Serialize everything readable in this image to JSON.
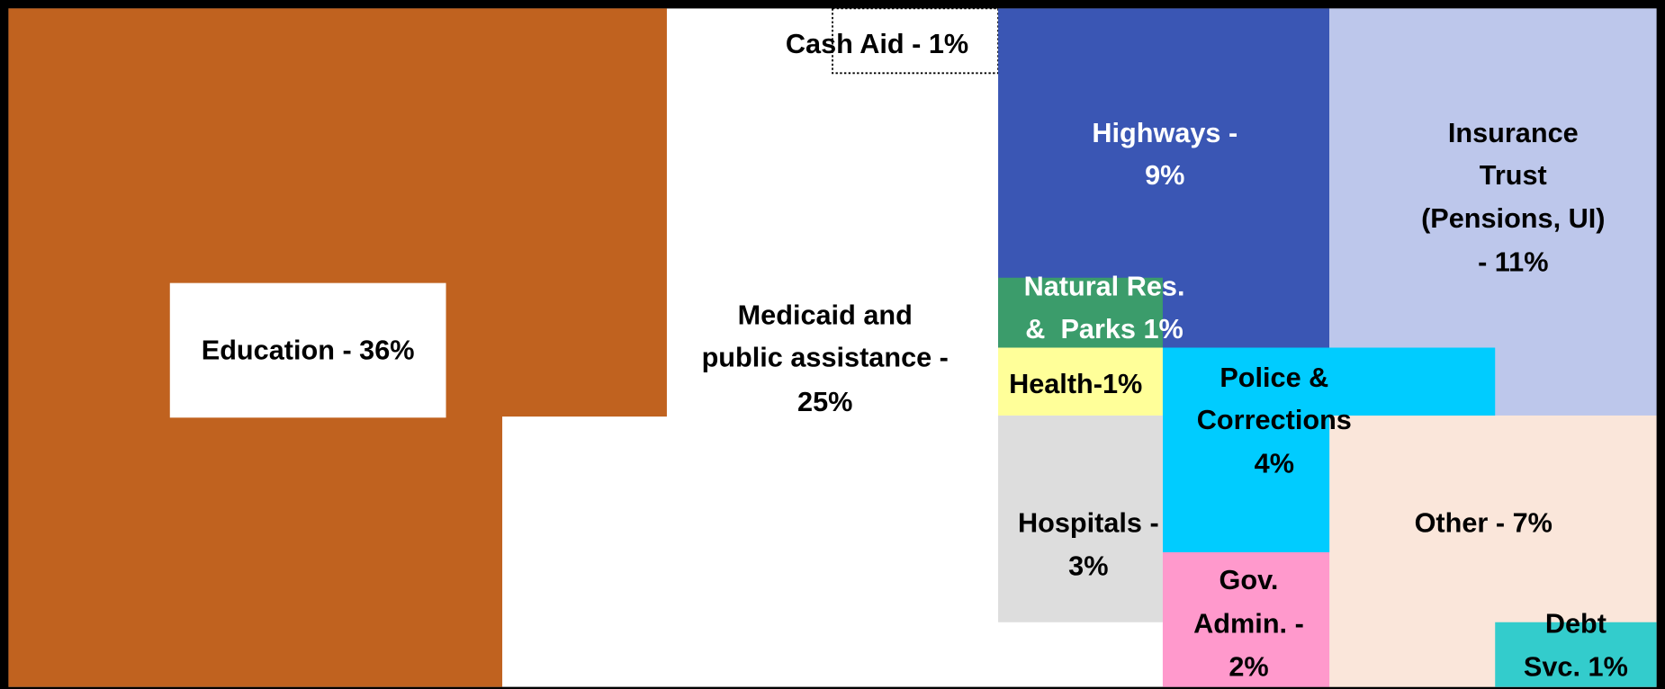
{
  "blocks": [
    {
      "name": "education",
      "lines": [
        "Education - 36%"
      ]
    },
    {
      "name": "medicaid",
      "lines": [
        "Medicaid and",
        "public assistance -",
        "25%"
      ]
    },
    {
      "name": "cash-aid",
      "lines": [
        "Cash Aid - 1%"
      ]
    },
    {
      "name": "highways",
      "lines": [
        "Highways -",
        "9%"
      ]
    },
    {
      "name": "insurance",
      "lines": [
        "Insurance",
        "Trust",
        "(Pensions, UI)",
        "- 11%"
      ]
    },
    {
      "name": "natural-res",
      "lines": [
        "Natural Res.",
        "&  Parks 1%"
      ]
    },
    {
      "name": "health",
      "lines": [
        "Health-1%"
      ]
    },
    {
      "name": "police",
      "lines": [
        "Police &",
        "Corrections",
        "4%"
      ]
    },
    {
      "name": "hospitals",
      "lines": [
        "Hospitals -",
        "3%"
      ]
    },
    {
      "name": "other",
      "lines": [
        "Other - 7%"
      ]
    },
    {
      "name": "gov-admin",
      "lines": [
        "Gov.",
        "Admin. -",
        "2%"
      ]
    },
    {
      "name": "debt",
      "lines": [
        "Debt",
        "Svc. 1%"
      ]
    }
  ]
}
